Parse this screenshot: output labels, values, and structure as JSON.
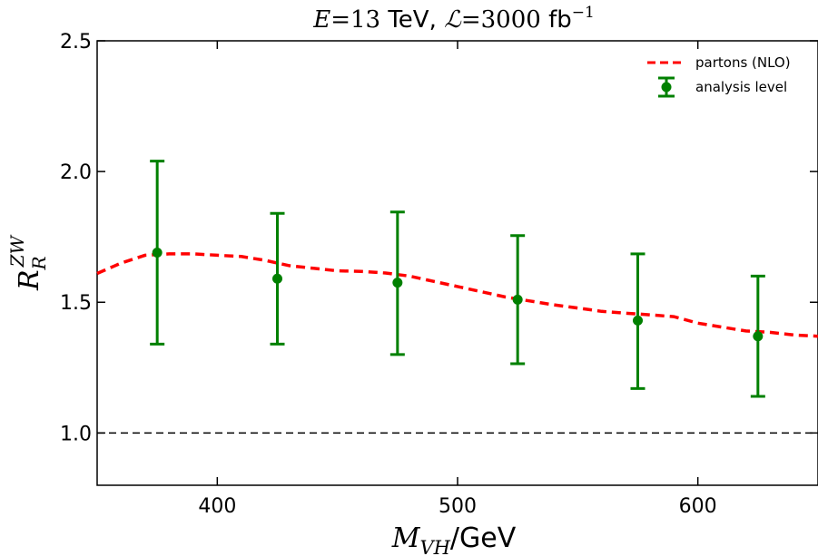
{
  "chart_data": {
    "type": "line",
    "title": "E = 13 TeV, ℒ = 3000 fb⁻¹",
    "title_parts": {
      "e_symbol": "E",
      "e_value": "=13 ",
      "e_unit": "TeV, ",
      "lumi_symbol": "ℒ",
      "lumi_value": "=3000 ",
      "lumi_unit": "fb",
      "lumi_exp": "−1"
    },
    "xlabel": "M_VH/GeV",
    "xlabel_parts": {
      "symbol": "M",
      "sub": "VH",
      "unit": "/GeV"
    },
    "ylabel": "R_R^ZW",
    "ylabel_parts": {
      "symbol": "R",
      "sub": "R",
      "sup": "ZW"
    },
    "xlim": [
      350,
      650
    ],
    "ylim": [
      0.8,
      2.5
    ],
    "xticks": [
      400,
      500,
      600
    ],
    "xtick_labels": [
      "400",
      "500",
      "600"
    ],
    "yticks": [
      1.0,
      1.5,
      2.0,
      2.5
    ],
    "ytick_labels": [
      "1.0",
      "1.5",
      "2.0",
      "2.5"
    ],
    "reference_line": {
      "y": 1.0,
      "style": "dashed",
      "color": "#000000"
    },
    "legend_position": "top-right",
    "series": [
      {
        "name": "partons (NLO)",
        "kind": "line",
        "style": "dashed",
        "color": "#ff0000",
        "x": [
          350,
          360,
          370,
          380,
          390,
          400,
          410,
          420,
          430,
          440,
          450,
          460,
          470,
          480,
          490,
          500,
          510,
          520,
          530,
          540,
          550,
          560,
          570,
          580,
          590,
          600,
          610,
          620,
          630,
          640,
          650
        ],
        "y": [
          1.61,
          1.65,
          1.68,
          1.685,
          1.685,
          1.68,
          1.675,
          1.66,
          1.64,
          1.63,
          1.62,
          1.618,
          1.612,
          1.6,
          1.58,
          1.56,
          1.54,
          1.52,
          1.505,
          1.49,
          1.478,
          1.465,
          1.458,
          1.452,
          1.445,
          1.42,
          1.405,
          1.39,
          1.385,
          1.375,
          1.37
        ]
      },
      {
        "name": "analysis level",
        "kind": "errorbar",
        "color": "#008000",
        "x": [
          375,
          425,
          475,
          525,
          575,
          625
        ],
        "y": [
          1.69,
          1.59,
          1.575,
          1.51,
          1.43,
          1.37
        ],
        "yerr_low": [
          1.34,
          1.34,
          1.3,
          1.265,
          1.17,
          1.14
        ],
        "yerr_high": [
          2.04,
          1.84,
          1.845,
          1.755,
          1.685,
          1.6
        ]
      }
    ]
  }
}
